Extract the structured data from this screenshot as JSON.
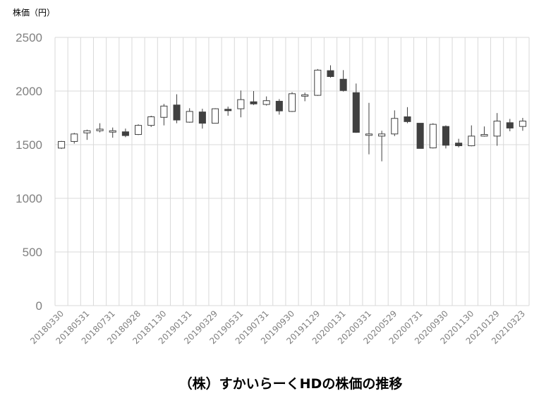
{
  "chart_data": {
    "type": "candlestick",
    "title": "（株）すかいらーくHDの株価の推移",
    "ylabel": "株価（円）",
    "xlabel": "",
    "ylim": [
      0,
      2500
    ],
    "yticks": [
      0,
      500,
      1000,
      1500,
      2000,
      2500
    ],
    "grid": true,
    "legend": "none",
    "colors": {
      "up": "#ffffff",
      "down": "#404040",
      "outline": "#404040",
      "grid": "#d9d9d9"
    },
    "x_labels": [
      "20180330",
      "20180531",
      "20180731",
      "20180928",
      "20181130",
      "20190131",
      "20190329",
      "20190531",
      "20190731",
      "20190930",
      "20191129",
      "20200131",
      "20200331",
      "20200529",
      "20200731",
      "20200930",
      "20201130",
      "20210129",
      "20210323"
    ],
    "candles": [
      {
        "o": 1468,
        "c": 1530,
        "h": 1535,
        "l": 1460
      },
      {
        "o": 1530,
        "c": 1600,
        "h": 1610,
        "l": 1510
      },
      {
        "o": 1610,
        "c": 1630,
        "h": 1640,
        "l": 1545
      },
      {
        "o": 1630,
        "c": 1645,
        "h": 1700,
        "l": 1615
      },
      {
        "o": 1625,
        "c": 1630,
        "h": 1660,
        "l": 1565
      },
      {
        "o": 1620,
        "c": 1585,
        "h": 1650,
        "l": 1570
      },
      {
        "o": 1595,
        "c": 1680,
        "h": 1690,
        "l": 1590
      },
      {
        "o": 1680,
        "c": 1760,
        "h": 1770,
        "l": 1665
      },
      {
        "o": 1755,
        "c": 1860,
        "h": 1880,
        "l": 1680
      },
      {
        "o": 1870,
        "c": 1730,
        "h": 1970,
        "l": 1700
      },
      {
        "o": 1710,
        "c": 1810,
        "h": 1840,
        "l": 1705
      },
      {
        "o": 1805,
        "c": 1700,
        "h": 1835,
        "l": 1650
      },
      {
        "o": 1700,
        "c": 1835,
        "h": 1840,
        "l": 1700
      },
      {
        "o": 1830,
        "c": 1825,
        "h": 1855,
        "l": 1770
      },
      {
        "o": 1835,
        "c": 1920,
        "h": 2005,
        "l": 1755
      },
      {
        "o": 1900,
        "c": 1880,
        "h": 2000,
        "l": 1870
      },
      {
        "o": 1875,
        "c": 1910,
        "h": 1950,
        "l": 1865
      },
      {
        "o": 1905,
        "c": 1815,
        "h": 1925,
        "l": 1780
      },
      {
        "o": 1810,
        "c": 1975,
        "h": 1990,
        "l": 1805
      },
      {
        "o": 1955,
        "c": 1965,
        "h": 1985,
        "l": 1905
      },
      {
        "o": 1960,
        "c": 2195,
        "h": 2205,
        "l": 1955
      },
      {
        "o": 2190,
        "c": 2135,
        "h": 2240,
        "l": 2125
      },
      {
        "o": 2110,
        "c": 2005,
        "h": 2195,
        "l": 1995
      },
      {
        "o": 1985,
        "c": 1615,
        "h": 2070,
        "l": 1610
      },
      {
        "o": 1590,
        "c": 1600,
        "h": 1890,
        "l": 1410
      },
      {
        "o": 1580,
        "c": 1600,
        "h": 1630,
        "l": 1345
      },
      {
        "o": 1600,
        "c": 1745,
        "h": 1820,
        "l": 1580
      },
      {
        "o": 1760,
        "c": 1715,
        "h": 1850,
        "l": 1700
      },
      {
        "o": 1700,
        "c": 1465,
        "h": 1700,
        "l": 1465
      },
      {
        "o": 1470,
        "c": 1690,
        "h": 1700,
        "l": 1465
      },
      {
        "o": 1670,
        "c": 1495,
        "h": 1680,
        "l": 1465
      },
      {
        "o": 1515,
        "c": 1490,
        "h": 1555,
        "l": 1475
      },
      {
        "o": 1490,
        "c": 1580,
        "h": 1680,
        "l": 1485
      },
      {
        "o": 1580,
        "c": 1595,
        "h": 1670,
        "l": 1575
      },
      {
        "o": 1580,
        "c": 1720,
        "h": 1795,
        "l": 1490
      },
      {
        "o": 1705,
        "c": 1655,
        "h": 1740,
        "l": 1625
      },
      {
        "o": 1670,
        "c": 1720,
        "h": 1750,
        "l": 1630
      }
    ]
  }
}
